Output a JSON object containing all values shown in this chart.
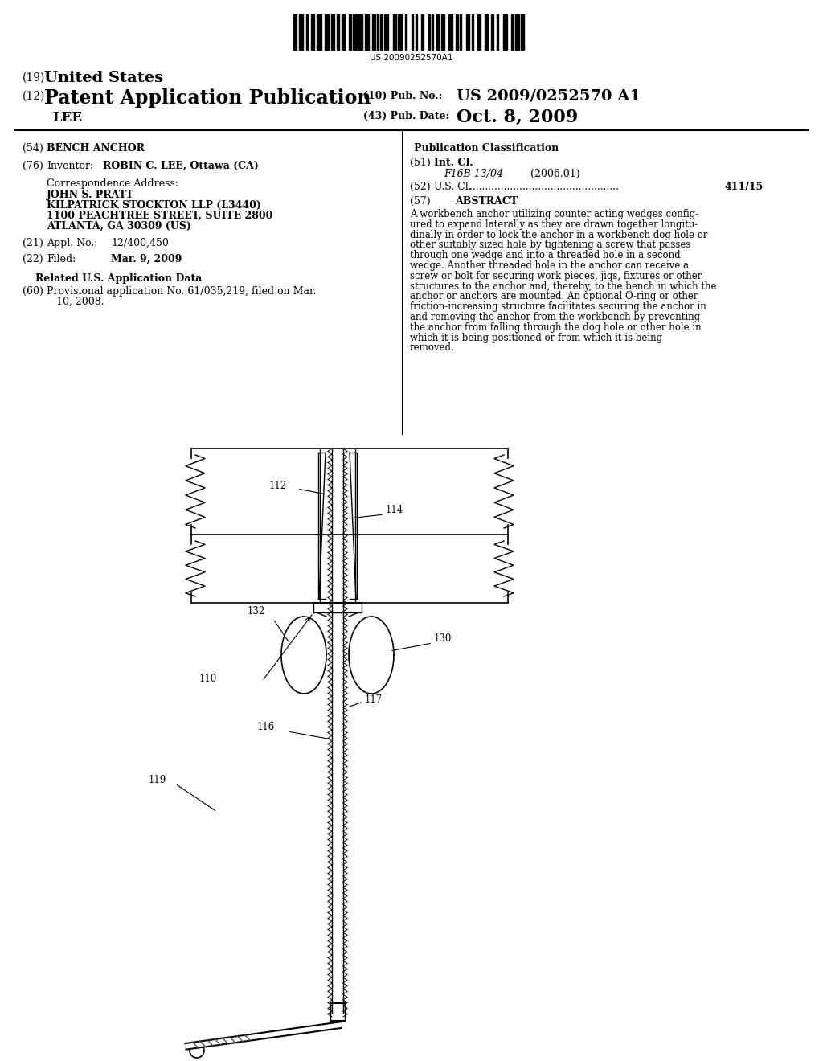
{
  "background_color": "#ffffff",
  "barcode_text": "US 20090252570A1",
  "title_19": "(19)",
  "title_19_bold": "United States",
  "title_12": "(12)",
  "title_12_bold": "Patent Application Publication",
  "pub_no_label": "(10) Pub. No.:",
  "pub_no_value": "US 2009/0252570 A1",
  "pub_date_label": "(43) Pub. Date:",
  "pub_date_value": "Oct. 8, 2009",
  "inventor_name": "LEE",
  "field_54_label": "(54)",
  "field_54_value": "BENCH ANCHOR",
  "field_76_label": "(76)",
  "field_76_sub": "Inventor:",
  "field_76_value": "ROBIN C. LEE, Ottawa (CA)",
  "corr_addr_label": "Correspondence Address:",
  "corr_addr_lines": [
    "JOHN S. PRATT",
    "KILPATRICK STOCKTON LLP (L3440)",
    "1100 PEACHTREE STREET, SUITE 2800",
    "ATLANTA, GA 30309 (US)"
  ],
  "field_21_label": "(21)",
  "field_21_sub": "Appl. No.:",
  "field_21_value": "12/400,450",
  "field_22_label": "(22)",
  "field_22_sub": "Filed:",
  "field_22_value": "Mar. 9, 2009",
  "related_data_title": "Related U.S. Application Data",
  "field_60_label": "(60)",
  "field_60_text": "Provisional application No. 61/035,219, filed on Mar.\n10, 2008.",
  "pub_class_title": "Publication Classification",
  "field_51_label": "(51)",
  "field_51_sub": "Int. Cl.",
  "field_51_class": "F16B 13/04",
  "field_51_year": "(2006.01)",
  "field_52_label": "(52)",
  "field_52_sub": "U.S. Cl.",
  "field_52_value": "411/15",
  "field_57_label": "(57)",
  "abstract_title": "ABSTRACT",
  "abstract_text": "A workbench anchor utilizing counter acting wedges config-\nured to expand laterally as they are drawn together longitu-\ndinally in order to lock the anchor in a workbench dog hole or\nother suitably sized hole by tightening a screw that passes\nthrough one wedge and into a threaded hole in a second\nwedge. Another threaded hole in the anchor can receive a\nscrew or bolt for securing work pieces, jigs, fixtures or other\nstructures to the anchor and, thereby, to the bench in which the\nanchor or anchors are mounted. An optional O-ring or other\nfriction-increasing structure facilitates securing the anchor in\nand removing the anchor from the workbench by preventing\nthe anchor from falling through the dog hole or other hole in\nwhich it is being positioned or from which it is being\nremoved."
}
